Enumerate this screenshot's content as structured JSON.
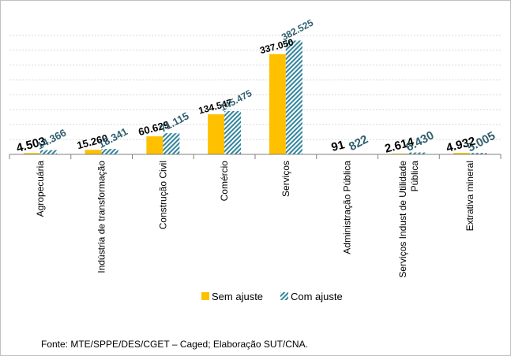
{
  "chart_data": {
    "type": "bar",
    "categories": [
      "Agropecuária",
      "Indústria de transformação",
      "Construção Civil",
      "Comércio",
      "Serviços",
      "Administração Pública",
      "Serviços Indust de Utilidade Pública",
      "Extrativa mineral"
    ],
    "series": [
      {
        "name": "Sem ajuste",
        "values": [
          4503,
          15260,
          60629,
          134547,
          337050,
          91,
          2614,
          4932
        ],
        "labels": [
          "4.503",
          "15.260",
          "60.629",
          "134.547",
          "337.050",
          "91",
          "2.614",
          "4.932"
        ],
        "color": "#FFC000"
      },
      {
        "name": "Com ajuste",
        "values": [
          14366,
          18341,
          71115,
          145475,
          382525,
          822,
          6430,
          5005
        ],
        "labels": [
          "14.366",
          "18.341",
          "71.115",
          "145.475",
          "382.525",
          "822",
          "6.430",
          "5.005"
        ],
        "color": "#31859C"
      }
    ],
    "ylim": [
      0,
      450000
    ],
    "grid": true,
    "legend": "bottom"
  },
  "source": "Fonte:  MTE/SPPE/DES/CGET  – Caged; Elaboração SUT/CNA."
}
